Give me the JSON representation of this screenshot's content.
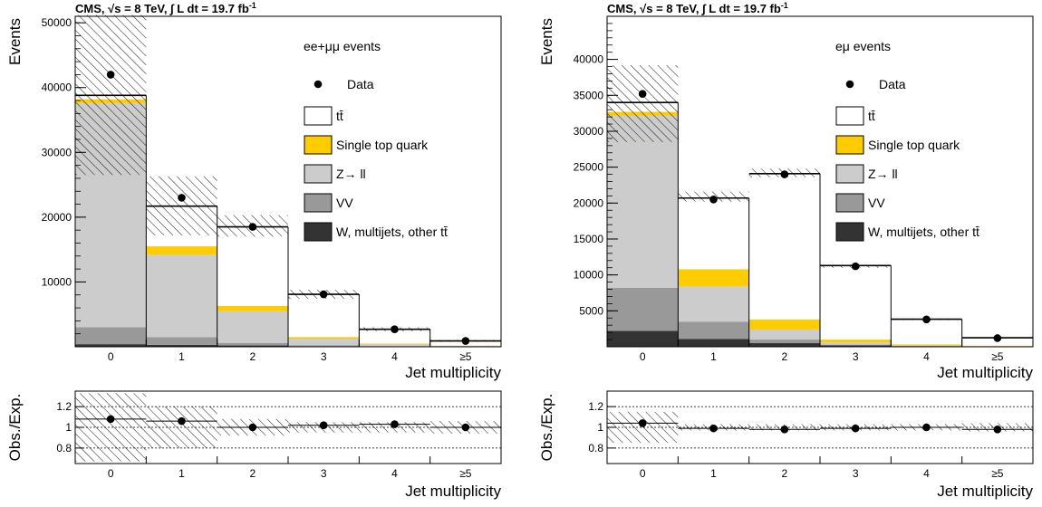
{
  "chart_data": [
    {
      "type": "bar",
      "stacked": true,
      "header": "CMS,  √s = 8 TeV,  ∫ L dt = 19.7 fb",
      "header_superscript": "-1",
      "channel": "ee+μμ events",
      "categories": [
        "0",
        "1",
        "2",
        "3",
        "4",
        "≥5"
      ],
      "xlabel": "Jet multiplicity",
      "ylabel": "Events",
      "ylim": [
        0,
        51000
      ],
      "yticks": [
        10000,
        20000,
        30000,
        40000,
        50000
      ],
      "legend_position": "top-right",
      "series": [
        {
          "name": "W, multijets, other tt̄",
          "color": "#333333",
          "values": [
            400,
            300,
            200,
            100,
            50,
            20
          ]
        },
        {
          "name": "VV",
          "color": "#999999",
          "values": [
            2600,
            1200,
            400,
            150,
            50,
            20
          ]
        },
        {
          "name": "Z→ ll",
          "color": "#cccccc",
          "values": [
            34600,
            12700,
            4900,
            1000,
            300,
            100
          ]
        },
        {
          "name": "Single top quark",
          "color": "#ffcc00",
          "values": [
            600,
            1300,
            800,
            250,
            100,
            40
          ]
        },
        {
          "name": "tt̄",
          "color": "#ffffff",
          "values": [
            600,
            6200,
            12200,
            6600,
            2200,
            720
          ]
        }
      ],
      "data": {
        "name": "Data",
        "values": [
          42000,
          23000,
          18500,
          8100,
          2700,
          900
        ]
      },
      "uncertainty": {
        "up": [
          51200,
          26300,
          20300,
          8800,
          3000,
          1050
        ],
        "down": [
          26500,
          17200,
          17000,
          7400,
          2400,
          750
        ]
      },
      "ratio": {
        "ylabel": "Obs./Exp.",
        "ylim": [
          0.65,
          1.35
        ],
        "yticks": [
          "0.8",
          "1",
          "1.2"
        ],
        "values": [
          1.08,
          1.06,
          1.0,
          1.02,
          1.03,
          1.0
        ],
        "band_up": [
          1.33,
          1.2,
          1.08,
          1.05,
          1.05,
          1.06
        ],
        "band_down": [
          0.67,
          0.8,
          0.92,
          0.95,
          0.95,
          0.94
        ]
      }
    },
    {
      "type": "bar",
      "stacked": true,
      "header": "CMS,  √s = 8 TeV,  ∫ L dt = 19.7 fb",
      "header_superscript": "-1",
      "channel": "eμ events",
      "categories": [
        "0",
        "1",
        "2",
        "3",
        "4",
        "≥5"
      ],
      "xlabel": "Jet multiplicity",
      "ylabel": "Events",
      "ylim": [
        0,
        46000
      ],
      "yticks": [
        5000,
        10000,
        15000,
        20000,
        25000,
        30000,
        35000,
        40000
      ],
      "legend_position": "top-right",
      "series": [
        {
          "name": "W, multijets, other tt̄",
          "color": "#333333",
          "values": [
            2200,
            1100,
            500,
            200,
            80,
            30
          ]
        },
        {
          "name": "VV",
          "color": "#999999",
          "values": [
            6000,
            2400,
            500,
            100,
            40,
            20
          ]
        },
        {
          "name": "Z→ ll",
          "color": "#cccccc",
          "values": [
            24000,
            4900,
            1400,
            300,
            80,
            30
          ]
        },
        {
          "name": "Single top quark",
          "color": "#ffcc00",
          "values": [
            500,
            2400,
            1400,
            400,
            130,
            40
          ]
        },
        {
          "name": "tt̄",
          "color": "#ffffff",
          "values": [
            1300,
            9900,
            20300,
            10300,
            3500,
            1130
          ]
        }
      ],
      "data": {
        "name": "Data",
        "values": [
          35200,
          20500,
          24000,
          11200,
          3800,
          1200
        ]
      },
      "uncertainty": {
        "up": [
          39200,
          21600,
          24800,
          11400,
          3900,
          1300
        ],
        "down": [
          28500,
          20200,
          23600,
          11000,
          3700,
          1150
        ]
      },
      "ratio": {
        "ylabel": "Obs./Exp.",
        "ylim": [
          0.65,
          1.35
        ],
        "yticks": [
          "0.8",
          "1",
          "1.2"
        ],
        "values": [
          1.04,
          0.99,
          0.98,
          0.99,
          1.0,
          0.98
        ],
        "band_up": [
          1.15,
          1.03,
          1.03,
          1.03,
          1.03,
          1.04
        ],
        "band_down": [
          0.85,
          0.97,
          0.97,
          0.97,
          0.97,
          0.96
        ]
      }
    }
  ]
}
